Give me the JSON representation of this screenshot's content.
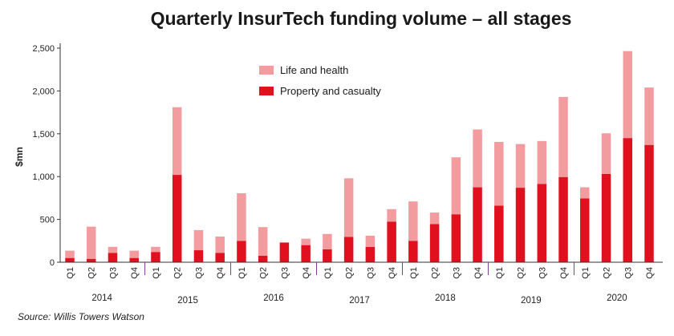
{
  "chart_data": {
    "type": "bar",
    "stacked": true,
    "title": "Quarterly InsurTech funding volume – all stages",
    "ylabel": "$mn",
    "xlabel": "",
    "ylim": [
      0,
      2500
    ],
    "yticks": [
      "0",
      "500",
      "1,000",
      "1,500",
      "2,000",
      "2,500"
    ],
    "ytick_values": [
      0,
      500,
      1000,
      1500,
      2000,
      2500
    ],
    "years": [
      "2014",
      "2015",
      "2016",
      "2017",
      "2018",
      "2019",
      "2020"
    ],
    "quarters": [
      "Q1",
      "Q2",
      "Q3",
      "Q4"
    ],
    "series": [
      {
        "name": "Property and casualty",
        "color": "#e0101e",
        "values": [
          50,
          40,
          110,
          50,
          120,
          1020,
          140,
          110,
          250,
          75,
          230,
          200,
          150,
          295,
          180,
          475,
          250,
          445,
          560,
          875,
          660,
          870,
          915,
          995,
          745,
          1030,
          1450,
          1370
        ]
      },
      {
        "name": "Life and health",
        "color": "#f29c9f",
        "values": [
          85,
          375,
          70,
          85,
          60,
          790,
          235,
          190,
          555,
          335,
          0,
          75,
          180,
          685,
          130,
          145,
          460,
          135,
          665,
          675,
          745,
          510,
          500,
          935,
          130,
          475,
          1015,
          670
        ]
      }
    ],
    "legend": [
      "Life and health",
      "Property and casualty"
    ],
    "legend_position": "top-center",
    "grid": false
  },
  "source": "Source: Willis Towers Watson"
}
